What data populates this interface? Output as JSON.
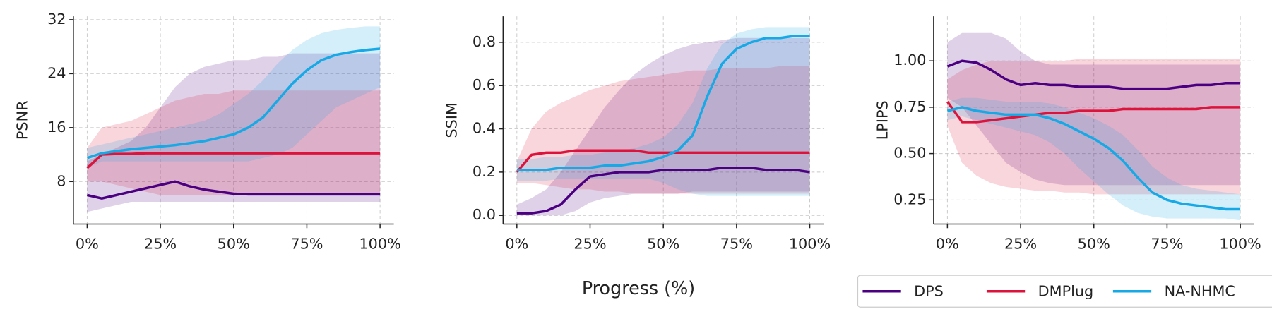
{
  "chart_data": [
    {
      "type": "line",
      "ylabel": "PSNR",
      "x": [
        0,
        5,
        10,
        15,
        20,
        25,
        30,
        35,
        40,
        45,
        50,
        55,
        60,
        65,
        70,
        75,
        80,
        85,
        90,
        95,
        100
      ],
      "xlim": [
        -4.7,
        104.7
      ],
      "xticks": [
        {
          "value": 0,
          "label": "0%"
        },
        {
          "value": 25,
          "label": "25%"
        },
        {
          "value": 50,
          "label": "50%"
        },
        {
          "value": 75,
          "label": "75%"
        },
        {
          "value": 100,
          "label": "100%"
        }
      ],
      "ylim": [
        1.7,
        32.5
      ],
      "yticks": [
        8,
        16,
        24,
        32
      ],
      "grid": true,
      "series": [
        {
          "name": "DPS",
          "color": "#4b0082",
          "values": [
            6,
            5.5,
            6,
            6.5,
            7,
            7.5,
            8,
            7.3,
            6.8,
            6.5,
            6.2,
            6.1,
            6.1,
            6.1,
            6.1,
            6.1,
            6.1,
            6.1,
            6.1,
            6.1,
            6.1
          ],
          "lower": [
            3.5,
            4,
            4.5,
            5,
            5,
            5,
            5,
            5,
            5,
            5,
            5,
            5,
            5,
            5,
            5,
            5,
            5,
            5,
            5,
            5,
            5
          ],
          "upper": [
            11,
            12,
            13,
            14,
            16,
            19,
            22,
            24,
            25,
            25.5,
            26,
            26,
            26.5,
            26.5,
            27,
            27,
            27,
            27,
            27,
            27,
            27
          ]
        },
        {
          "name": "DMPlug",
          "color": "#dc143c",
          "values": [
            10,
            12,
            12.1,
            12.1,
            12.2,
            12.2,
            12.2,
            12.2,
            12.2,
            12.2,
            12.2,
            12.2,
            12.2,
            12.2,
            12.2,
            12.2,
            12.2,
            12.2,
            12.2,
            12.2,
            12.2
          ],
          "lower": [
            8,
            8,
            7.5,
            7,
            6.5,
            6,
            6,
            6,
            6,
            6,
            6,
            6,
            6,
            6,
            6,
            6,
            6,
            6,
            6,
            6,
            6
          ],
          "upper": [
            13,
            16,
            16.5,
            17,
            18,
            19,
            20,
            20.5,
            21,
            21,
            21.5,
            21.5,
            21.5,
            21.5,
            21.5,
            21.5,
            21.5,
            21.5,
            21.5,
            21.5,
            21.5
          ]
        },
        {
          "name": "NA-NHMC",
          "color": "#16a9e6",
          "values": [
            11.5,
            12.2,
            12.5,
            12.8,
            13,
            13.2,
            13.4,
            13.7,
            14,
            14.5,
            15,
            16,
            17.5,
            20,
            22.5,
            24.5,
            26,
            26.8,
            27.2,
            27.5,
            27.7
          ],
          "lower": [
            10,
            11,
            11,
            11,
            11,
            11,
            11,
            11,
            11,
            11,
            11,
            11,
            11.5,
            12,
            13,
            15,
            17,
            19,
            20,
            21,
            22
          ],
          "upper": [
            13,
            13.5,
            14,
            14.5,
            15,
            15.5,
            16,
            16.5,
            17,
            18,
            19.5,
            21,
            23,
            25.5,
            27.5,
            29,
            30,
            30.5,
            30.8,
            31,
            31
          ]
        }
      ]
    },
    {
      "type": "line",
      "ylabel": "SSIM",
      "xlabel": "Progress (%)",
      "x": [
        0,
        5,
        10,
        15,
        20,
        25,
        30,
        35,
        40,
        45,
        50,
        55,
        60,
        65,
        70,
        75,
        80,
        85,
        90,
        95,
        100
      ],
      "xlim": [
        -4.7,
        104.7
      ],
      "xticks": [
        {
          "value": 0,
          "label": "0%"
        },
        {
          "value": 25,
          "label": "25%"
        },
        {
          "value": 50,
          "label": "50%"
        },
        {
          "value": 75,
          "label": "75%"
        },
        {
          "value": 100,
          "label": "100%"
        }
      ],
      "ylim": [
        -0.04,
        0.92
      ],
      "yticks": [
        {
          "value": 0,
          "label": "0.0"
        },
        0.2,
        0.4,
        0.6,
        0.8
      ],
      "grid": true,
      "series": [
        {
          "name": "DPS",
          "color": "#4b0082",
          "values": [
            0.01,
            0.01,
            0.02,
            0.05,
            0.12,
            0.18,
            0.19,
            0.2,
            0.2,
            0.2,
            0.21,
            0.21,
            0.21,
            0.21,
            0.22,
            0.22,
            0.22,
            0.21,
            0.21,
            0.21,
            0.2
          ],
          "lower": [
            0,
            0,
            0,
            0,
            0.02,
            0.06,
            0.08,
            0.09,
            0.1,
            0.1,
            0.1,
            0.1,
            0.11,
            0.11,
            0.11,
            0.11,
            0.11,
            0.11,
            0.11,
            0.11,
            0.11
          ],
          "upper": [
            0.05,
            0.08,
            0.12,
            0.2,
            0.3,
            0.4,
            0.5,
            0.58,
            0.65,
            0.7,
            0.74,
            0.77,
            0.79,
            0.8,
            0.81,
            0.82,
            0.82,
            0.82,
            0.82,
            0.82,
            0.82
          ]
        },
        {
          "name": "DMPlug",
          "color": "#dc143c",
          "values": [
            0.2,
            0.28,
            0.29,
            0.29,
            0.3,
            0.3,
            0.3,
            0.3,
            0.3,
            0.29,
            0.29,
            0.29,
            0.29,
            0.29,
            0.29,
            0.29,
            0.29,
            0.29,
            0.29,
            0.29,
            0.29
          ],
          "lower": [
            0.15,
            0.15,
            0.14,
            0.13,
            0.12,
            0.12,
            0.11,
            0.11,
            0.1,
            0.1,
            0.1,
            0.1,
            0.1,
            0.1,
            0.1,
            0.1,
            0.1,
            0.1,
            0.1,
            0.1,
            0.1
          ],
          "upper": [
            0.25,
            0.4,
            0.48,
            0.52,
            0.55,
            0.58,
            0.6,
            0.62,
            0.63,
            0.64,
            0.65,
            0.66,
            0.67,
            0.67,
            0.68,
            0.68,
            0.68,
            0.68,
            0.69,
            0.69,
            0.69
          ]
        },
        {
          "name": "NA-NHMC",
          "color": "#16a9e6",
          "values": [
            0.21,
            0.21,
            0.21,
            0.22,
            0.22,
            0.22,
            0.23,
            0.23,
            0.24,
            0.25,
            0.27,
            0.3,
            0.37,
            0.55,
            0.7,
            0.77,
            0.8,
            0.82,
            0.82,
            0.83,
            0.83
          ],
          "lower": [
            0.16,
            0.16,
            0.16,
            0.17,
            0.17,
            0.17,
            0.17,
            0.17,
            0.17,
            0.17,
            0.15,
            0.12,
            0.1,
            0.09,
            0.09,
            0.09,
            0.09,
            0.09,
            0.09,
            0.09,
            0.09
          ],
          "upper": [
            0.26,
            0.26,
            0.27,
            0.27,
            0.28,
            0.28,
            0.29,
            0.3,
            0.31,
            0.33,
            0.36,
            0.42,
            0.52,
            0.68,
            0.79,
            0.84,
            0.86,
            0.87,
            0.87,
            0.87,
            0.87
          ]
        }
      ]
    },
    {
      "type": "line",
      "ylabel": "LPIPS",
      "legend": "lower right",
      "x": [
        0,
        5,
        10,
        15,
        20,
        25,
        30,
        35,
        40,
        45,
        50,
        55,
        60,
        65,
        70,
        75,
        80,
        85,
        90,
        95,
        100
      ],
      "xlim": [
        -4.7,
        104.7
      ],
      "xticks": [
        {
          "value": 0,
          "label": "0%"
        },
        {
          "value": 25,
          "label": "25%"
        },
        {
          "value": 50,
          "label": "50%"
        },
        {
          "value": 75,
          "label": "75%"
        },
        {
          "value": 100,
          "label": "100%"
        }
      ],
      "ylim": [
        0.12,
        1.24
      ],
      "yticks": [
        {
          "value": 0.25,
          "label": "0.25"
        },
        {
          "value": 0.5,
          "label": "0.50"
        },
        {
          "value": 0.75,
          "label": "0.75"
        },
        {
          "value": 1,
          "label": "1.00"
        }
      ],
      "grid": true,
      "series": [
        {
          "name": "DPS",
          "color": "#4b0082",
          "values": [
            0.97,
            1.0,
            0.99,
            0.95,
            0.9,
            0.87,
            0.88,
            0.87,
            0.87,
            0.86,
            0.86,
            0.86,
            0.85,
            0.85,
            0.85,
            0.85,
            0.86,
            0.87,
            0.87,
            0.88,
            0.88
          ],
          "lower": [
            0.8,
            0.75,
            0.65,
            0.55,
            0.45,
            0.4,
            0.36,
            0.34,
            0.33,
            0.33,
            0.33,
            0.33,
            0.33,
            0.33,
            0.33,
            0.33,
            0.33,
            0.33,
            0.33,
            0.33,
            0.33
          ],
          "upper": [
            1.1,
            1.15,
            1.15,
            1.15,
            1.12,
            1.05,
            1.0,
            0.98,
            0.98,
            0.98,
            0.98,
            0.98,
            0.98,
            0.98,
            0.98,
            0.98,
            0.98,
            0.98,
            0.98,
            0.98,
            0.98
          ]
        },
        {
          "name": "DMPlug",
          "color": "#dc143c",
          "values": [
            0.78,
            0.67,
            0.67,
            0.68,
            0.69,
            0.7,
            0.71,
            0.72,
            0.72,
            0.73,
            0.73,
            0.73,
            0.74,
            0.74,
            0.74,
            0.74,
            0.74,
            0.74,
            0.75,
            0.75,
            0.75
          ],
          "lower": [
            0.65,
            0.45,
            0.38,
            0.34,
            0.32,
            0.31,
            0.3,
            0.3,
            0.29,
            0.29,
            0.28,
            0.28,
            0.28,
            0.28,
            0.28,
            0.28,
            0.28,
            0.28,
            0.28,
            0.28,
            0.28
          ],
          "upper": [
            0.9,
            0.95,
            0.98,
            1.0,
            1.0,
            1.0,
            1.0,
            1.0,
            1.0,
            1.01,
            1.01,
            1.01,
            1.01,
            1.01,
            1.01,
            1.01,
            1.01,
            1.01,
            1.01,
            1.01,
            1.01
          ]
        },
        {
          "name": "NA-NHMC",
          "color": "#16a9e6",
          "values": [
            0.73,
            0.75,
            0.73,
            0.72,
            0.71,
            0.71,
            0.71,
            0.69,
            0.66,
            0.62,
            0.58,
            0.53,
            0.46,
            0.37,
            0.29,
            0.25,
            0.23,
            0.22,
            0.21,
            0.2,
            0.2
          ],
          "lower": [
            0.68,
            0.7,
            0.68,
            0.66,
            0.64,
            0.62,
            0.6,
            0.56,
            0.5,
            0.42,
            0.35,
            0.28,
            0.22,
            0.18,
            0.16,
            0.15,
            0.15,
            0.15,
            0.15,
            0.15,
            0.14
          ],
          "upper": [
            0.78,
            0.8,
            0.8,
            0.79,
            0.78,
            0.78,
            0.78,
            0.77,
            0.75,
            0.72,
            0.69,
            0.65,
            0.6,
            0.52,
            0.43,
            0.37,
            0.33,
            0.31,
            0.3,
            0.29,
            0.28
          ]
        }
      ]
    }
  ]
}
